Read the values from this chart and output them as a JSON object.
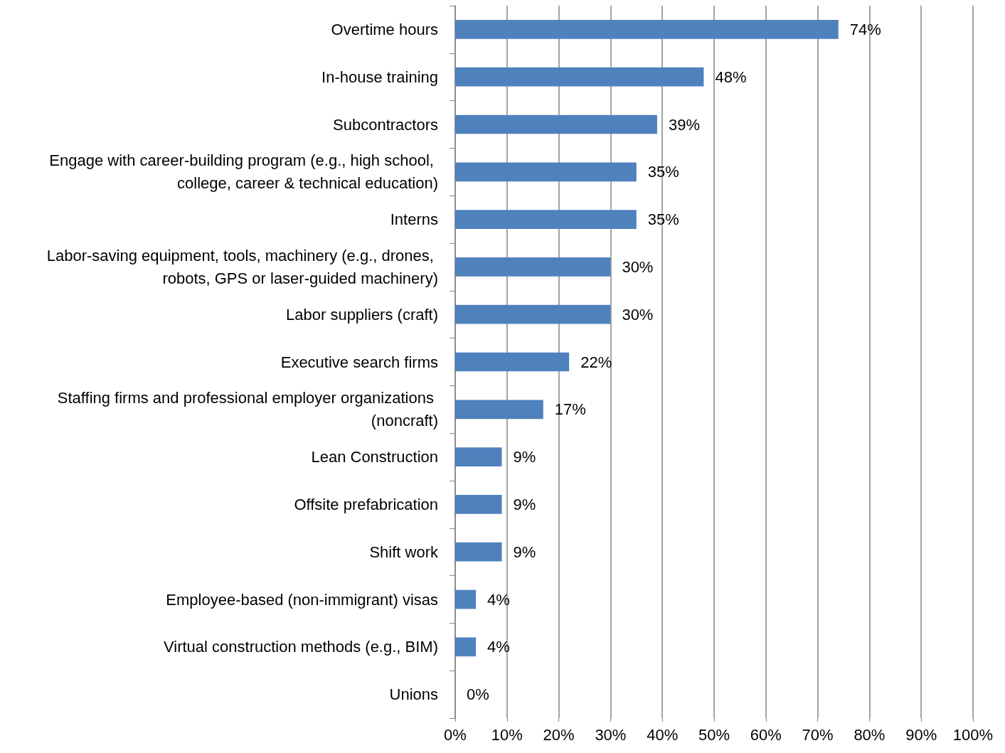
{
  "chart_data": {
    "type": "bar",
    "orientation": "horizontal",
    "categories": [
      "Overtime hours",
      "In-house training",
      "Subcontractors",
      "Engage with career-building program (e.g., high school, college, career & technical education)",
      "Interns",
      "Labor-saving equipment, tools, machinery (e.g., drones, robots, GPS or laser-guided machinery)",
      "Labor suppliers (craft)",
      "Executive search firms",
      "Staffing firms and professional employer organizations (noncraft)",
      "Lean Construction",
      "Offsite prefabrication",
      "Shift work",
      "Employee-based (non-immigrant) visas",
      "Virtual construction methods (e.g., BIM)",
      "Unions"
    ],
    "values": [
      74,
      48,
      39,
      35,
      35,
      30,
      30,
      22,
      17,
      9,
      9,
      9,
      4,
      4,
      0
    ],
    "value_labels": [
      "74%",
      "48%",
      "39%",
      "35%",
      "35%",
      "30%",
      "30%",
      "22%",
      "17%",
      "9%",
      "9%",
      "9%",
      "4%",
      "4%",
      "0%"
    ],
    "color": "#4f81bd",
    "xlim": [
      0,
      100
    ],
    "xticks": [
      {
        "value": 0,
        "label": "0%"
      },
      {
        "value": 10,
        "label": "10%"
      },
      {
        "value": 20,
        "label": "20%"
      },
      {
        "value": 30,
        "label": "30%"
      },
      {
        "value": 40,
        "label": "40%"
      },
      {
        "value": 50,
        "label": "50%"
      },
      {
        "value": 60,
        "label": "60%"
      },
      {
        "value": 70,
        "label": "70%"
      },
      {
        "value": 80,
        "label": "80%"
      },
      {
        "value": 90,
        "label": "90%"
      },
      {
        "value": 100,
        "label": "100%"
      }
    ],
    "grid": "x"
  }
}
